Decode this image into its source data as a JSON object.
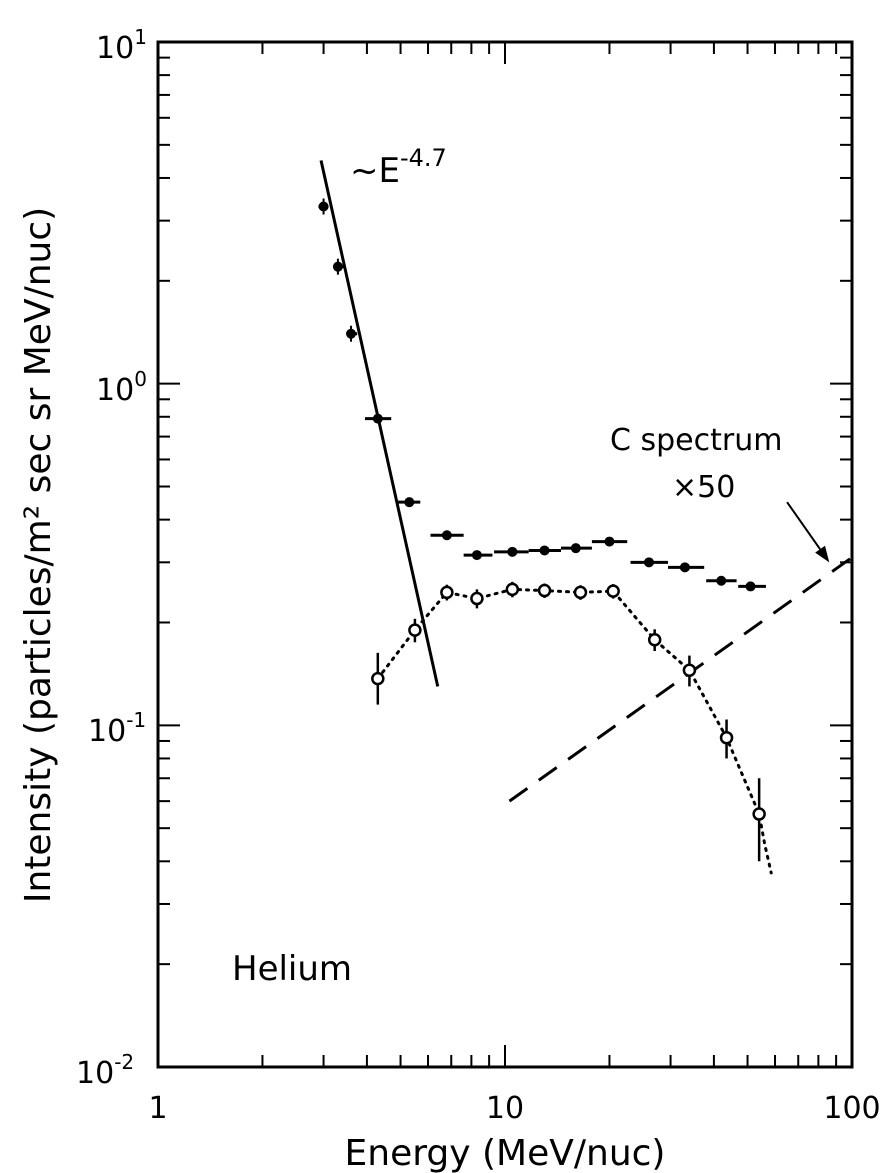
{
  "chart_data": {
    "type": "scatter",
    "xscale": "log",
    "yscale": "log",
    "xlim": [
      1,
      100
    ],
    "ylim": [
      0.01,
      10
    ],
    "xlabel": "Energy (MeV/nuc)",
    "ylabel": "Intensity (particles/m² sec sr MeV/nuc)",
    "x_tick_labels": [
      {
        "value": 1,
        "label": "1"
      },
      {
        "value": 10,
        "label": "10"
      },
      {
        "value": 100,
        "label": "100"
      }
    ],
    "y_tick_labels": [
      {
        "value": 0.01,
        "base": "10",
        "exp": "-2"
      },
      {
        "value": 0.1,
        "base": "10",
        "exp": "-1"
      },
      {
        "value": 1,
        "base": "10",
        "exp": "0"
      },
      {
        "value": 10,
        "base": "10",
        "exp": "1"
      }
    ],
    "series": [
      {
        "marker": "filled-circle",
        "points": [
          {
            "x": 3.0,
            "y": 3.3,
            "xerr": [
              2.9,
              3.1
            ]
          },
          {
            "x": 3.3,
            "y": 2.2,
            "xerr": [
              3.2,
              3.45
            ]
          },
          {
            "x": 3.6,
            "y": 1.4,
            "xerr": [
              3.5,
              3.75
            ]
          },
          {
            "x": 4.3,
            "y": 0.79,
            "xerr": [
              3.95,
              4.7
            ]
          },
          {
            "x": 5.3,
            "y": 0.45,
            "xerr": [
              4.9,
              5.7
            ]
          },
          {
            "x": 6.8,
            "y": 0.36,
            "xerr": [
              6.1,
              7.6
            ]
          },
          {
            "x": 8.3,
            "y": 0.315,
            "xerr": [
              7.6,
              9.2
            ]
          },
          {
            "x": 10.5,
            "y": 0.322,
            "xerr": [
              9.3,
              11.7
            ]
          },
          {
            "x": 13.0,
            "y": 0.325,
            "xerr": [
              11.7,
              14.5
            ]
          },
          {
            "x": 16.0,
            "y": 0.33,
            "xerr": [
              14.5,
              17.8
            ]
          },
          {
            "x": 20.0,
            "y": 0.345,
            "xerr": [
              17.8,
              22.5
            ]
          },
          {
            "x": 26.0,
            "y": 0.3,
            "xerr": [
              23.0,
              29.5
            ]
          },
          {
            "x": 33.0,
            "y": 0.29,
            "xerr": [
              29.5,
              37.5
            ]
          },
          {
            "x": 42.0,
            "y": 0.265,
            "xerr": [
              38.0,
              46.5
            ]
          },
          {
            "x": 51.0,
            "y": 0.255,
            "xerr": [
              47.0,
              56.5
            ]
          }
        ]
      },
      {
        "marker": "open-circle",
        "connector": "dotted",
        "points": [
          {
            "x": 4.3,
            "y": 0.137,
            "yerr": [
              0.115,
              0.163
            ]
          },
          {
            "x": 5.5,
            "y": 0.19,
            "yerr": [
              0.175,
              0.205
            ]
          },
          {
            "x": 6.8,
            "y": 0.245,
            "yerr": [
              0.232,
              0.258
            ]
          },
          {
            "x": 8.3,
            "y": 0.235,
            "yerr": [
              0.22,
              0.25
            ]
          },
          {
            "x": 10.5,
            "y": 0.25,
            "yerr": [
              0.237,
              0.263
            ]
          },
          {
            "x": 13.0,
            "y": 0.248,
            "yerr": [
              0.236,
              0.26
            ]
          },
          {
            "x": 16.5,
            "y": 0.245,
            "yerr": [
              0.233,
              0.257
            ]
          },
          {
            "x": 20.5,
            "y": 0.247,
            "yerr": [
              0.235,
              0.259
            ]
          },
          {
            "x": 27.0,
            "y": 0.178,
            "yerr": [
              0.165,
              0.191
            ]
          },
          {
            "x": 34.0,
            "y": 0.145,
            "yerr": [
              0.13,
              0.16
            ]
          },
          {
            "x": 43.5,
            "y": 0.092,
            "yerr": [
              0.08,
              0.104
            ]
          },
          {
            "x": 54.0,
            "y": 0.055,
            "yerr": [
              0.04,
              0.07
            ]
          }
        ],
        "tail": [
          {
            "x": 56.0,
            "y": 0.045
          },
          {
            "x": 58.5,
            "y": 0.037
          }
        ]
      }
    ],
    "fit_line": {
      "style": "solid",
      "points": [
        {
          "x": 2.95,
          "y": 4.5
        },
        {
          "x": 6.4,
          "y": 0.13
        }
      ]
    },
    "c_spectrum_line": {
      "style": "dashed",
      "points": [
        {
          "x": 10.3,
          "y": 0.06
        },
        {
          "x": 100,
          "y": 0.31
        }
      ]
    },
    "annotations": {
      "power_law": {
        "prefix": "~E",
        "exp": "-4.7"
      },
      "c_spectrum_line1": "C spectrum",
      "c_spectrum_line2": "×50",
      "species": "Helium"
    },
    "arrow": {
      "from": {
        "x": 65,
        "y": 0.45
      },
      "to": {
        "x": 86,
        "y": 0.3
      }
    }
  }
}
